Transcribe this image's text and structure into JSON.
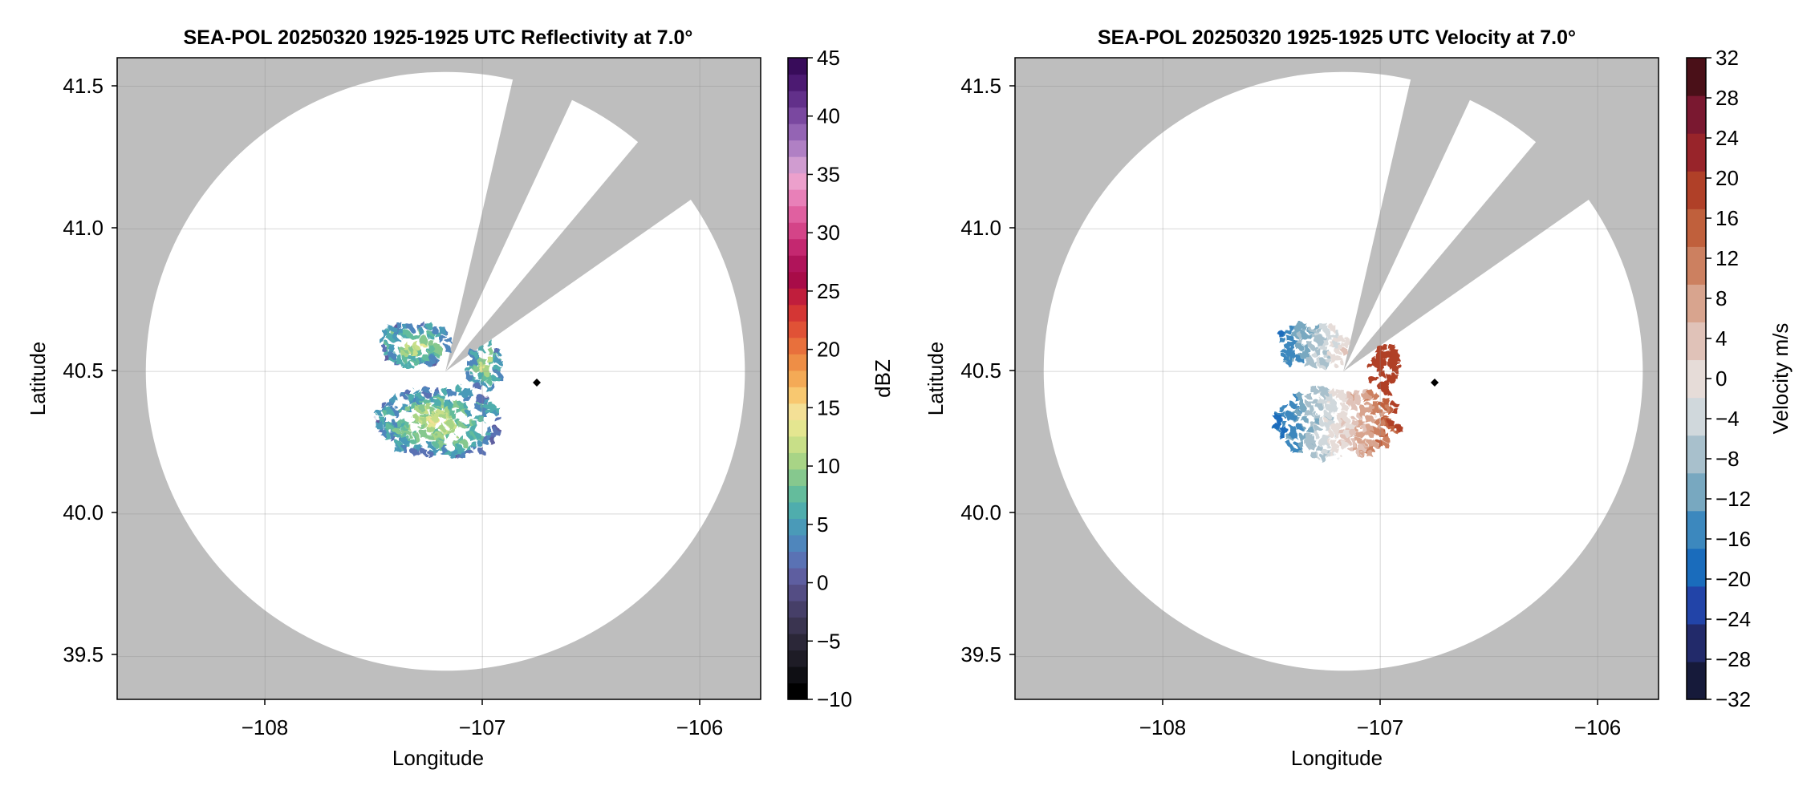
{
  "colors": {
    "background_outside_coverage": "#bebebe",
    "coverage": "#ffffff",
    "radar_marker": "#000000"
  },
  "chart_data": [
    {
      "type": "heatmap",
      "title": "SEA-POL 20250320 1925-1925 UTC Reflectivity at 7.0°",
      "xlabel": "Longitude",
      "ylabel": "Latitude",
      "xlim": [
        -108.68,
        -105.72
      ],
      "ylim": [
        39.35,
        41.6
      ],
      "xticks": [
        -108,
        -107,
        -106
      ],
      "xtick_labels": [
        "−108",
        "−107",
        "−106"
      ],
      "yticks": [
        39.5,
        40.0,
        40.5,
        41.0,
        41.5
      ],
      "ytick_labels": [
        "39.5",
        "40.0",
        "40.5",
        "41.0",
        "41.5"
      ],
      "grid": true,
      "radar_site": [
        -107.17,
        40.5
      ],
      "range_radius_deg_lat": 1.05,
      "blocked_sectors": [
        [
          13,
          25
        ],
        [
          40,
          55
        ]
      ],
      "marker": [
        -106.74,
        40.46
      ],
      "colorbar": {
        "label": "dBZ",
        "min": -10,
        "max": 45,
        "ticks": [
          -10,
          -5,
          0,
          5,
          10,
          15,
          20,
          25,
          30,
          35,
          40,
          45
        ],
        "tick_labels": [
          "−10",
          "−5",
          "0",
          "5",
          "10",
          "15",
          "20",
          "25",
          "30",
          "35",
          "40",
          "45"
        ],
        "colors": [
          "#000000",
          "#0f0f14",
          "#1e1c26",
          "#2b2738",
          "#3a3450",
          "#463f68",
          "#544d84",
          "#5e5ea0",
          "#5a72b4",
          "#4f86bc",
          "#4a9ab8",
          "#4fadad",
          "#64bc9c",
          "#86c88e",
          "#a8d486",
          "#c8df88",
          "#e4e690",
          "#f4e096",
          "#f8c870",
          "#f4aa56",
          "#ee8e46",
          "#e8703c",
          "#e05236",
          "#d43634",
          "#c01e3c",
          "#a80c48",
          "#b0145a",
          "#c42870",
          "#d44488",
          "#e060a0",
          "#e880b8",
          "#eca0cc",
          "#d09cd0",
          "#b080c4",
          "#9464b4",
          "#7a48a0",
          "#62308a",
          "#4c1a72",
          "#380c5a"
        ]
      },
      "echo_cells": [
        {
          "name": "west-cell",
          "lon": [
            -107.48,
            -107.16
          ],
          "lat": [
            40.53,
            40.68
          ]
        },
        {
          "name": "east-cell",
          "lon": [
            -107.07,
            -106.93
          ],
          "lat": [
            40.44,
            40.61
          ]
        },
        {
          "name": "south-cell",
          "lon": [
            -107.5,
            -106.93
          ],
          "lat": [
            40.21,
            40.45
          ]
        }
      ]
    },
    {
      "type": "heatmap",
      "title": "SEA-POL 20250320 1925-1925 UTC Velocity at 7.0°",
      "xlabel": "Longitude",
      "ylabel": "Latitude",
      "xlim": [
        -108.68,
        -105.72
      ],
      "ylim": [
        39.35,
        41.6
      ],
      "xticks": [
        -108,
        -107,
        -106
      ],
      "xtick_labels": [
        "−108",
        "−107",
        "−106"
      ],
      "yticks": [
        39.5,
        40.0,
        40.5,
        41.0,
        41.5
      ],
      "ytick_labels": [
        "39.5",
        "40.0",
        "40.5",
        "41.0",
        "41.5"
      ],
      "grid": true,
      "radar_site": [
        -107.17,
        40.5
      ],
      "range_radius_deg_lat": 1.05,
      "blocked_sectors": [
        [
          13,
          25
        ],
        [
          40,
          55
        ]
      ],
      "marker": [
        -106.74,
        40.46
      ],
      "colorbar": {
        "label": "Velocity m/s",
        "min": -32,
        "max": 32,
        "ticks": [
          -32,
          -28,
          -24,
          -20,
          -16,
          -12,
          -8,
          -4,
          0,
          4,
          8,
          12,
          16,
          20,
          24,
          28,
          32
        ],
        "tick_labels": [
          "−32",
          "−28",
          "−24",
          "−20",
          "−16",
          "−12",
          "−8",
          "−4",
          "0",
          "4",
          "8",
          "12",
          "16",
          "20",
          "24",
          "28",
          "32"
        ],
        "colors": [
          "#161a3a",
          "#222a6a",
          "#2244a8",
          "#1a6cbc",
          "#3c88be",
          "#78a8c0",
          "#a8c0cc",
          "#d0d8dc",
          "#e6dcd8",
          "#e0c2b8",
          "#d8a48e",
          "#cc8060",
          "#c0603c",
          "#b04028",
          "#98242a",
          "#7a1830",
          "#4a1018"
        ]
      },
      "echo_cells": [
        {
          "name": "west-cell",
          "lon": [
            -107.48,
            -107.16
          ],
          "lat": [
            40.53,
            40.68
          ]
        },
        {
          "name": "east-cell",
          "lon": [
            -107.07,
            -106.93
          ],
          "lat": [
            40.44,
            40.61
          ]
        },
        {
          "name": "south-cell",
          "lon": [
            -107.5,
            -106.93
          ],
          "lat": [
            40.21,
            40.45
          ]
        }
      ]
    }
  ]
}
